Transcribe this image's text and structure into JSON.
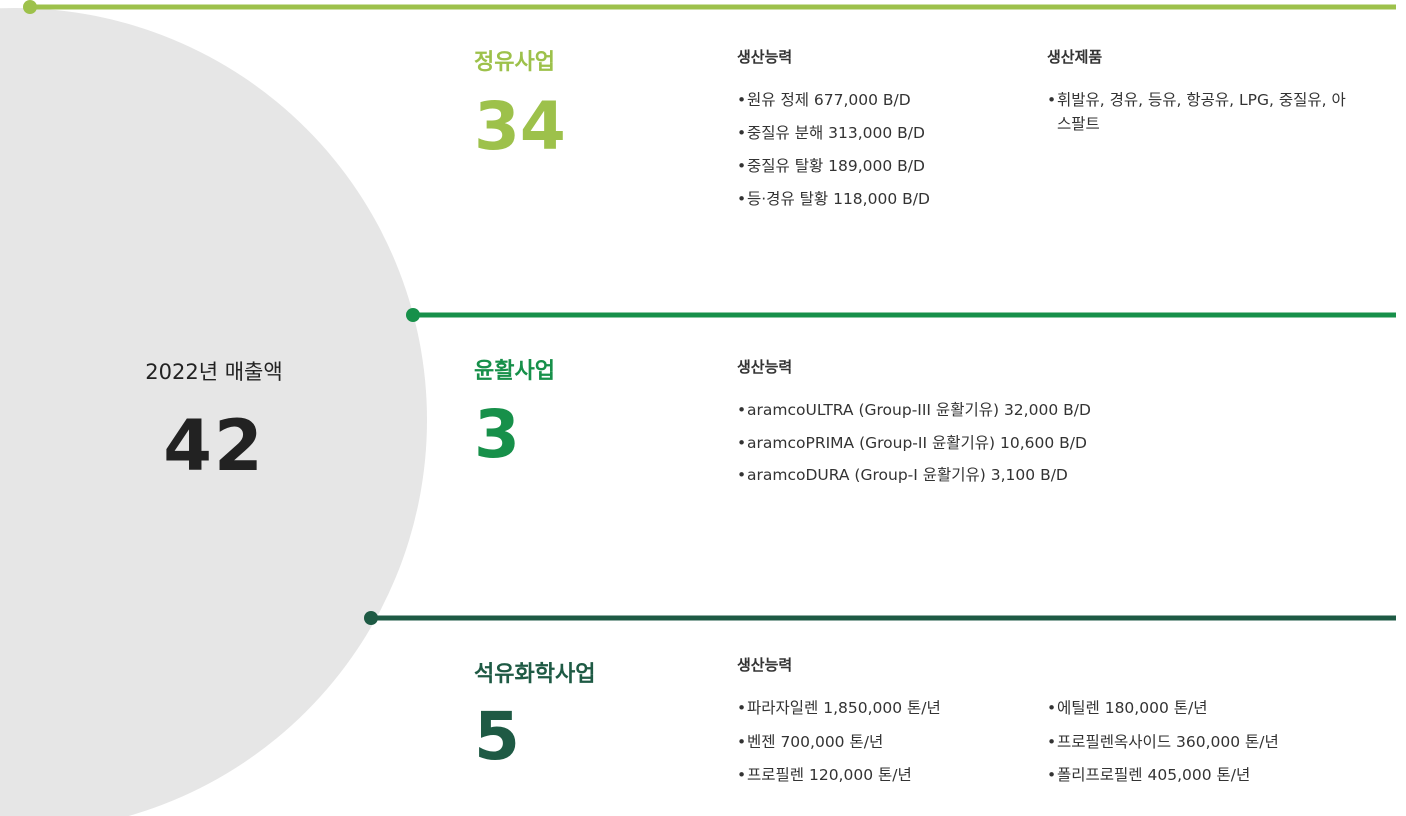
{
  "summary": {
    "label": "2022년 매출액",
    "value": "42"
  },
  "sections": [
    {
      "title": "정유사업",
      "value": "34",
      "columns": [
        {
          "heading": "생산능력",
          "items": [
            "원유 정제 677,000 B/D",
            "중질유 분해 313,000 B/D",
            "중질유 탈황 189,000 B/D",
            "등·경유 탈황 118,000 B/D"
          ]
        },
        {
          "heading": "생산제품",
          "items": [
            "휘발유, 경유, 등유, 항공유, LPG, 중질유, 아스팔트"
          ]
        }
      ]
    },
    {
      "title": "윤활사업",
      "value": "3",
      "columns": [
        {
          "heading": "생산능력",
          "items": [
            "aramcoULTRA (Group-III 윤활기유) 32,000 B/D",
            "aramcoPRIMA (Group-II 윤활기유) 10,600 B/D",
            "aramcoDURA (Group-I 윤활기유) 3,100 B/D"
          ]
        }
      ]
    },
    {
      "title": "석유화학사업",
      "value": "5",
      "columns": [
        {
          "heading": "생산능력",
          "items": [
            "파라자일렌 1,850,000 톤/년",
            "벤젠 700,000 톤/년",
            "프로필렌 120,000 톤/년"
          ]
        },
        {
          "items": [
            "에틸렌 180,000 톤/년",
            "프로필렌옥사이드 360,000 톤/년",
            "폴리프로필렌 405,000 톤/년"
          ]
        }
      ]
    }
  ]
}
